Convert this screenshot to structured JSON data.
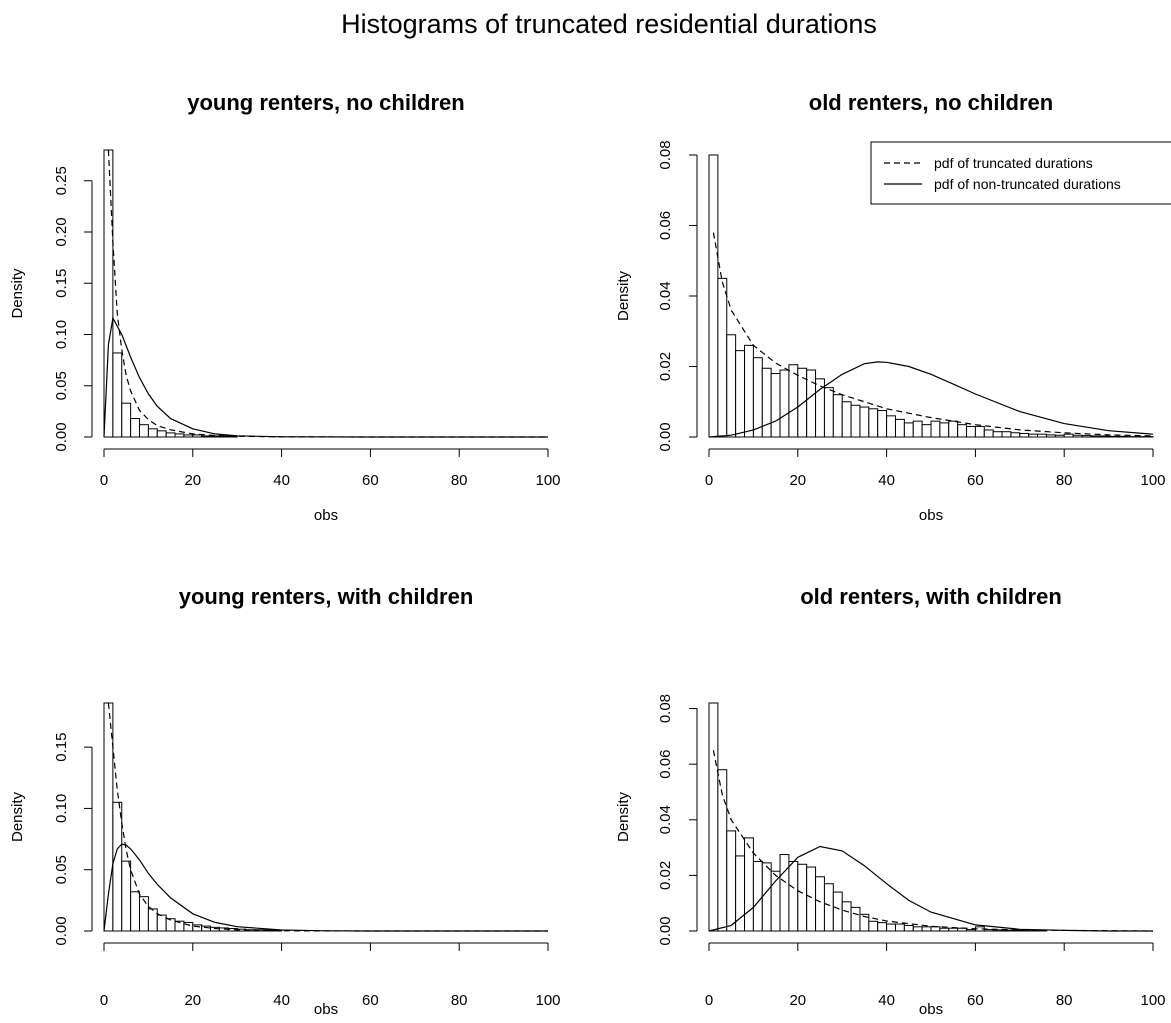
{
  "figure": {
    "title": "Histograms of truncated residential durations",
    "legend": {
      "placement": "top-right",
      "entries": [
        {
          "label": "pdf of truncated durations",
          "style": "dashed"
        },
        {
          "label": "pdf of non-truncated durations",
          "style": "solid"
        }
      ]
    }
  },
  "chart_data": [
    {
      "type": "bar",
      "title": "young renters, no children",
      "xlabel": "obs",
      "ylabel": "Density",
      "xlim": [
        0,
        100
      ],
      "ylim": [
        0,
        0.28
      ],
      "xticks": [
        "0",
        "20",
        "40",
        "60",
        "80",
        "100"
      ],
      "yticks": [
        "0.00",
        "0.05",
        "0.10",
        "0.15",
        "0.20",
        "0.25"
      ],
      "bin_width": 2,
      "bin_start": 0,
      "values": [
        0.28,
        0.082,
        0.033,
        0.018,
        0.012,
        0.008,
        0.006,
        0.004,
        0.003,
        0.002,
        0.002,
        0.001,
        0.001,
        0.001,
        0.001
      ],
      "series": [
        {
          "name": "pdf of truncated durations",
          "style": "dashed",
          "x": [
            1,
            2,
            3,
            4,
            5,
            6,
            8,
            10,
            12,
            15,
            20,
            25,
            30,
            40,
            60,
            100
          ],
          "y": [
            0.28,
            0.19,
            0.12,
            0.085,
            0.06,
            0.045,
            0.026,
            0.017,
            0.011,
            0.007,
            0.003,
            0.0015,
            0.0007,
            0.0002,
            0,
            0
          ]
        },
        {
          "name": "pdf of non-truncated durations",
          "style": "solid",
          "x": [
            0,
            1,
            2,
            4,
            6,
            8,
            10,
            12,
            15,
            20,
            25,
            30,
            40,
            60,
            100
          ],
          "y": [
            0,
            0.09,
            0.116,
            0.1,
            0.078,
            0.058,
            0.042,
            0.03,
            0.018,
            0.008,
            0.003,
            0.0012,
            0.0002,
            0,
            0
          ]
        }
      ]
    },
    {
      "type": "bar",
      "title": "old renters, no children",
      "xlabel": "obs",
      "ylabel": "Density",
      "xlim": [
        0,
        100
      ],
      "ylim": [
        0,
        0.08
      ],
      "xticks": [
        "0",
        "20",
        "40",
        "60",
        "80",
        "100"
      ],
      "yticks": [
        "0.00",
        "0.02",
        "0.04",
        "0.06",
        "0.08"
      ],
      "bin_width": 2,
      "bin_start": 0,
      "values": [
        0.08,
        0.045,
        0.029,
        0.0245,
        0.026,
        0.0225,
        0.0195,
        0.018,
        0.019,
        0.0205,
        0.0195,
        0.019,
        0.0165,
        0.014,
        0.012,
        0.01,
        0.009,
        0.0085,
        0.008,
        0.0075,
        0.006,
        0.005,
        0.004,
        0.0045,
        0.0035,
        0.0045,
        0.004,
        0.0045,
        0.0035,
        0.003,
        0.003,
        0.002,
        0.0015,
        0.0015,
        0.0012,
        0.001,
        0.0008,
        0.0008,
        0.0006,
        0.0005,
        0.0008,
        0.0005,
        0.0004,
        0.0003,
        0.0003,
        0.0002,
        0.0002,
        0.0001,
        0.0001,
        0.0001
      ],
      "series": [
        {
          "name": "pdf of truncated durations",
          "style": "dashed",
          "x": [
            1,
            3,
            5,
            10,
            15,
            20,
            25,
            30,
            40,
            50,
            60,
            70,
            80,
            90,
            100
          ],
          "y": [
            0.058,
            0.044,
            0.036,
            0.026,
            0.021,
            0.0175,
            0.0145,
            0.012,
            0.008,
            0.0055,
            0.0035,
            0.002,
            0.0012,
            0.0006,
            0.0003
          ]
        },
        {
          "name": "pdf of non-truncated durations",
          "style": "solid",
          "x": [
            0,
            5,
            10,
            15,
            20,
            25,
            30,
            35,
            38,
            40,
            45,
            50,
            55,
            60,
            70,
            80,
            90,
            100
          ],
          "y": [
            0,
            0.0005,
            0.002,
            0.0045,
            0.0085,
            0.0135,
            0.0178,
            0.0208,
            0.0213,
            0.0212,
            0.02,
            0.0178,
            0.015,
            0.0122,
            0.0072,
            0.0038,
            0.0018,
            0.0008
          ]
        }
      ]
    },
    {
      "type": "bar",
      "title": "young renters, with children",
      "xlabel": "obs",
      "ylabel": "Density",
      "xlim": [
        0,
        100
      ],
      "ylim": [
        0,
        0.186
      ],
      "xticks": [
        "0",
        "20",
        "40",
        "60",
        "80",
        "100"
      ],
      "yticks": [
        "0.00",
        "0.05",
        "0.10",
        "0.15"
      ],
      "bin_width": 2,
      "bin_start": 0,
      "values": [
        0.186,
        0.105,
        0.057,
        0.032,
        0.028,
        0.018,
        0.013,
        0.01,
        0.008,
        0.007,
        0.005,
        0.004,
        0.003,
        0.0025,
        0.002,
        0.0015,
        0.001,
        0.001,
        0.0008,
        0.0005
      ],
      "series": [
        {
          "name": "pdf of truncated durations",
          "style": "dashed",
          "x": [
            1,
            2,
            3,
            4,
            5,
            6,
            8,
            10,
            12,
            15,
            20,
            25,
            30,
            40,
            60,
            100
          ],
          "y": [
            0.186,
            0.15,
            0.115,
            0.088,
            0.066,
            0.05,
            0.03,
            0.02,
            0.014,
            0.009,
            0.004,
            0.002,
            0.001,
            0.0002,
            0,
            0
          ]
        },
        {
          "name": "pdf of non-truncated durations",
          "style": "solid",
          "x": [
            0,
            1,
            2,
            3,
            4,
            5,
            6,
            8,
            10,
            12,
            15,
            20,
            25,
            30,
            40,
            50,
            60,
            100
          ],
          "y": [
            0,
            0.03,
            0.055,
            0.067,
            0.071,
            0.07,
            0.067,
            0.058,
            0.047,
            0.038,
            0.027,
            0.014,
            0.007,
            0.0035,
            0.0008,
            0.0002,
            0,
            0
          ]
        }
      ]
    },
    {
      "type": "bar",
      "title": "old renters, with children",
      "xlabel": "obs",
      "ylabel": "Density",
      "xlim": [
        0,
        100
      ],
      "ylim": [
        0,
        0.082
      ],
      "xticks": [
        "0",
        "20",
        "40",
        "60",
        "80",
        "100"
      ],
      "yticks": [
        "0.00",
        "0.02",
        "0.04",
        "0.06",
        "0.08"
      ],
      "bin_width": 2,
      "bin_start": 0,
      "values": [
        0.082,
        0.058,
        0.036,
        0.027,
        0.0335,
        0.025,
        0.0245,
        0.0215,
        0.0275,
        0.025,
        0.024,
        0.023,
        0.0195,
        0.017,
        0.014,
        0.0105,
        0.0085,
        0.006,
        0.0035,
        0.003,
        0.0025,
        0.0025,
        0.002,
        0.0015,
        0.0015,
        0.0015,
        0.001,
        0.001,
        0.001,
        0.0005,
        0.0015,
        0.0005,
        0.0004,
        0.0003,
        0.0003,
        0.0002,
        0.0001,
        0.0001
      ],
      "series": [
        {
          "name": "pdf of truncated durations",
          "style": "dashed",
          "x": [
            1,
            3,
            5,
            10,
            15,
            20,
            25,
            30,
            35,
            40,
            50,
            60,
            70,
            80,
            100
          ],
          "y": [
            0.065,
            0.049,
            0.04,
            0.028,
            0.02,
            0.0145,
            0.0105,
            0.0075,
            0.0052,
            0.0036,
            0.0017,
            0.0008,
            0.0004,
            0.0002,
            0
          ]
        },
        {
          "name": "pdf of non-truncated durations",
          "style": "solid",
          "x": [
            0,
            5,
            10,
            15,
            20,
            25,
            30,
            35,
            40,
            45,
            50,
            60,
            70,
            80,
            90,
            100
          ],
          "y": [
            0,
            0.002,
            0.0085,
            0.018,
            0.0265,
            0.0304,
            0.0288,
            0.0235,
            0.017,
            0.011,
            0.0068,
            0.0022,
            0.0006,
            0.0002,
            0,
            0
          ]
        }
      ]
    }
  ]
}
